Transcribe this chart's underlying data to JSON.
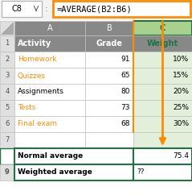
{
  "cell_ref": "C8",
  "formula": "=AVERAGE(B2:B6)",
  "col_labels": [
    "A",
    "B",
    "C"
  ],
  "header_row": [
    "Activity",
    "Grade",
    "Weight"
  ],
  "activities": [
    "Homework",
    "Quizzes",
    "Assignments",
    "Tests",
    "Final exam"
  ],
  "grades": [
    "91",
    "65",
    "80",
    "73",
    "68"
  ],
  "weights": [
    "10%",
    "15%",
    "20%",
    "25%",
    "30%"
  ],
  "normal_avg": "75.4",
  "weighted_avg": "??",
  "col_header_bg": "#888888",
  "col_header_fg": "#ffffff",
  "activity_col_orange_rows": [
    2,
    3,
    4,
    5,
    6
  ],
  "activity_orange_fg": "#ff8c00",
  "activity_normal_fg": "#000000",
  "weight_header_fg": "#217346",
  "highlight_col_bg": "#e2efda",
  "highlight_col_header_bg": "#a9d18e",
  "selected_green": "#217346",
  "orange": "#ff8c00",
  "grid_color": "#c0c0c0",
  "row_header_bg": "#d0d0d0",
  "formula_box_orange": "#ff8c00",
  "white": "#ffffff",
  "black": "#000000"
}
